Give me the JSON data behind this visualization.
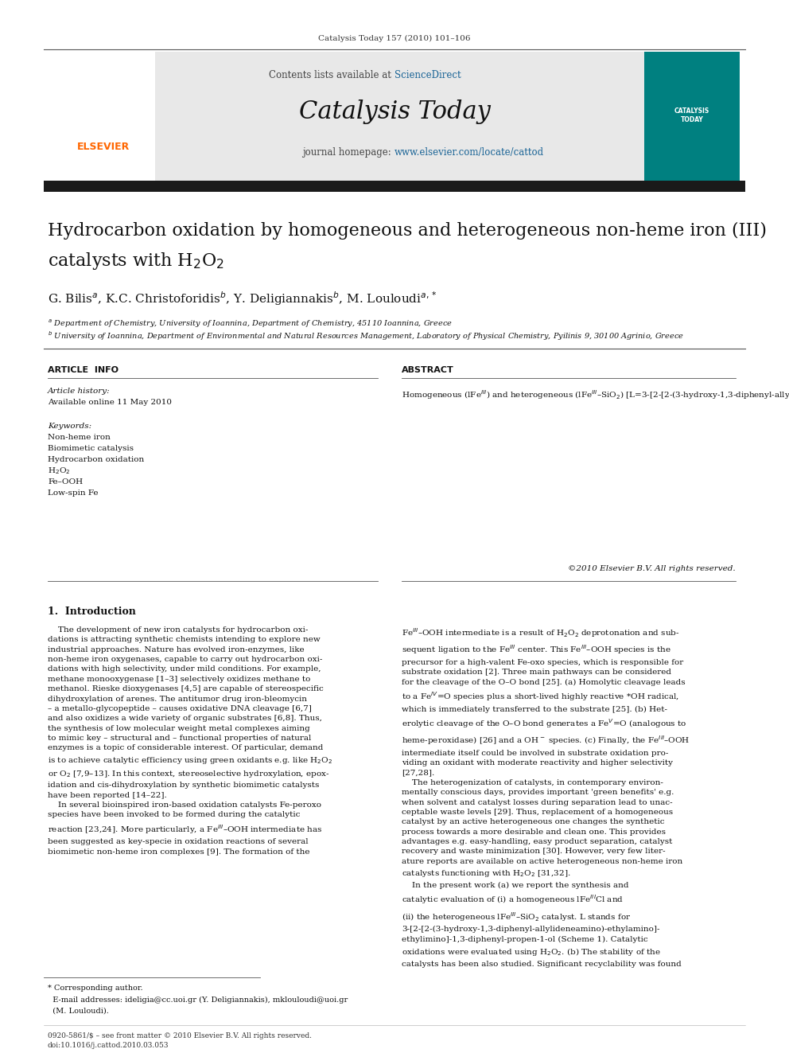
{
  "page_width": 9.92,
  "page_height": 13.23,
  "background_color": "#ffffff",
  "top_journal_ref": "Catalysis Today 157 (2010) 101–106",
  "header_bg": "#e8e8e8",
  "header_contents_text": "Contents lists available at ",
  "header_sciencedirect": "ScienceDirect",
  "header_sciencedirect_color": "#1a6496",
  "header_journal_title": "Catalysis Today",
  "header_homepage_text": "journal homepage: ",
  "header_homepage_url": "www.elsevier.com/locate/cattod",
  "header_homepage_url_color": "#1a6496",
  "dark_bar_color": "#1a1a1a",
  "article_title_line1": "Hydrocarbon oxidation by homogeneous and heterogeneous non-heme iron (III)",
  "article_title_line2": "catalysts with H$_2$O$_2$",
  "section_article_info": "ARTICLE  INFO",
  "section_abstract": "ABSTRACT",
  "article_history_label": "Article history:",
  "available_online": "Available online 11 May 2010",
  "keywords_label": "Keywords:",
  "keywords": [
    "Non-heme iron",
    "Biomimetic catalysis",
    "Hydrocarbon oxidation",
    "H$_2$O$_2$",
    "Fe–OOH",
    "Low-spin Fe"
  ],
  "copyright": "©2010 Elsevier B.V. All rights reserved.",
  "intro_heading": "1.  Introduction",
  "footnote_line1": "* Corresponding author.",
  "footnote_line2": "  E-mail addresses: ideligia@cc.uoi.gr (Y. Deligiannakis), mklouloudi@uoi.gr",
  "footnote_line3": "  (M. Louloudi).",
  "bottom_text1": "0920-5861/$ – see front matter © 2010 Elsevier B.V. All rights reserved.",
  "bottom_text2": "doi:10.1016/j.cattod.2010.03.053",
  "elsevier_color": "#ff6600",
  "journal_title_fontsize": 22,
  "article_title_fontsize": 16,
  "authors_fontsize": 11,
  "body_fontsize": 7.5
}
